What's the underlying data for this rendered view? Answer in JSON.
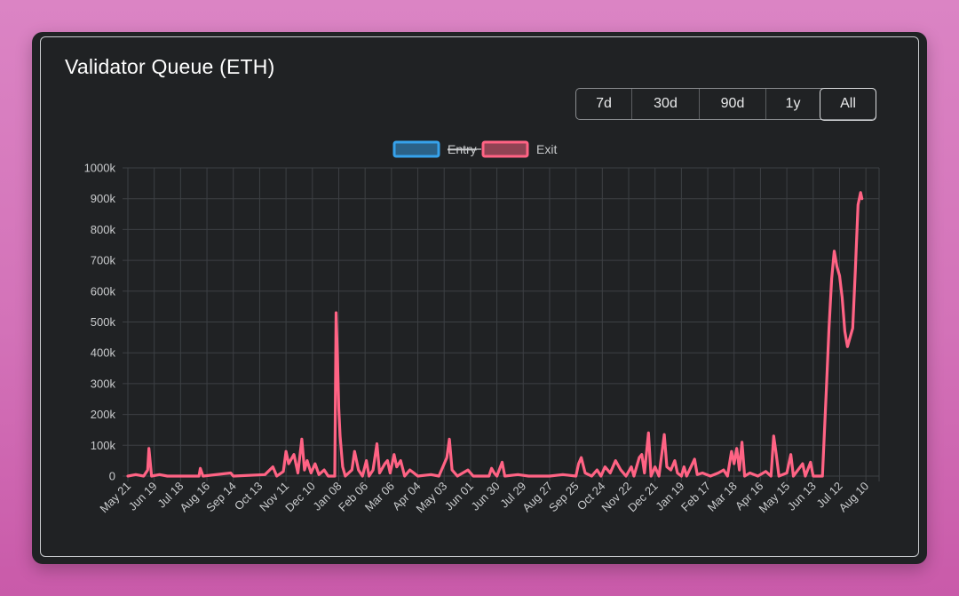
{
  "title": "Validator Queue (ETH)",
  "ranges": [
    "7d",
    "30d",
    "90d",
    "1y",
    "All"
  ],
  "active_range": "All",
  "chart_data": {
    "type": "line",
    "title": "",
    "xlabel": "",
    "ylabel": "",
    "ylim": [
      0,
      1000000
    ],
    "yticks": [
      "0",
      "100k",
      "200k",
      "300k",
      "400k",
      "500k",
      "600k",
      "700k",
      "800k",
      "900k",
      "1000k"
    ],
    "xticks": [
      "May 21",
      "Jun 19",
      "Jul 18",
      "Aug 16",
      "Sep 14",
      "Oct 13",
      "Nov 11",
      "Dec 10",
      "Jan 08",
      "Feb 06",
      "Mar 06",
      "Apr 04",
      "May 03",
      "Jun 01",
      "Jun 30",
      "Jul 29",
      "Aug 27",
      "Sep 25",
      "Oct 24",
      "Nov 22",
      "Dec 21",
      "Jan 19",
      "Feb 17",
      "Mar 18",
      "Apr 16",
      "May 15",
      "Jun 13",
      "Jul 12",
      "Aug 10"
    ],
    "grid": true,
    "legend": "top-center",
    "series": [
      {
        "name": "Entry",
        "color": "#36a2eb",
        "hidden": true,
        "points": []
      },
      {
        "name": "Exit",
        "color": "#ff6384",
        "hidden": false,
        "points": [
          [
            0,
            0
          ],
          [
            0.3,
            5000
          ],
          [
            0.6,
            0
          ],
          [
            0.75,
            20000
          ],
          [
            0.8,
            90000
          ],
          [
            0.9,
            0
          ],
          [
            1.2,
            5000
          ],
          [
            1.5,
            0
          ],
          [
            2.7,
            0
          ],
          [
            2.75,
            25000
          ],
          [
            2.85,
            0
          ],
          [
            3.9,
            10000
          ],
          [
            4.0,
            0
          ],
          [
            5.2,
            5000
          ],
          [
            5.5,
            30000
          ],
          [
            5.65,
            0
          ],
          [
            5.9,
            15000
          ],
          [
            6.0,
            80000
          ],
          [
            6.1,
            40000
          ],
          [
            6.3,
            70000
          ],
          [
            6.45,
            10000
          ],
          [
            6.6,
            120000
          ],
          [
            6.7,
            20000
          ],
          [
            6.8,
            50000
          ],
          [
            6.95,
            10000
          ],
          [
            7.1,
            40000
          ],
          [
            7.25,
            5000
          ],
          [
            7.45,
            20000
          ],
          [
            7.6,
            0
          ],
          [
            7.85,
            0
          ],
          [
            7.9,
            530000
          ],
          [
            7.95,
            390000
          ],
          [
            8.0,
            220000
          ],
          [
            8.05,
            130000
          ],
          [
            8.15,
            30000
          ],
          [
            8.25,
            0
          ],
          [
            8.5,
            20000
          ],
          [
            8.6,
            80000
          ],
          [
            8.75,
            20000
          ],
          [
            8.9,
            0
          ],
          [
            9.05,
            50000
          ],
          [
            9.15,
            0
          ],
          [
            9.3,
            20000
          ],
          [
            9.45,
            105000
          ],
          [
            9.55,
            10000
          ],
          [
            9.75,
            40000
          ],
          [
            9.85,
            50000
          ],
          [
            9.95,
            10000
          ],
          [
            10.1,
            70000
          ],
          [
            10.2,
            30000
          ],
          [
            10.35,
            50000
          ],
          [
            10.5,
            0
          ],
          [
            10.7,
            20000
          ],
          [
            10.85,
            10000
          ],
          [
            11.0,
            0
          ],
          [
            11.5,
            5000
          ],
          [
            11.8,
            0
          ],
          [
            12.1,
            60000
          ],
          [
            12.2,
            120000
          ],
          [
            12.3,
            20000
          ],
          [
            12.5,
            0
          ],
          [
            12.9,
            20000
          ],
          [
            13.1,
            0
          ],
          [
            13.7,
            0
          ],
          [
            13.8,
            25000
          ],
          [
            13.9,
            10000
          ],
          [
            14.0,
            0
          ],
          [
            14.2,
            45000
          ],
          [
            14.3,
            0
          ],
          [
            14.8,
            5000
          ],
          [
            15.2,
            0
          ],
          [
            16.0,
            0
          ],
          [
            16.5,
            5000
          ],
          [
            17.0,
            0
          ],
          [
            17.1,
            40000
          ],
          [
            17.2,
            60000
          ],
          [
            17.35,
            10000
          ],
          [
            17.6,
            0
          ],
          [
            17.8,
            20000
          ],
          [
            17.95,
            0
          ],
          [
            18.1,
            30000
          ],
          [
            18.3,
            10000
          ],
          [
            18.5,
            50000
          ],
          [
            18.7,
            20000
          ],
          [
            18.9,
            0
          ],
          [
            19.1,
            30000
          ],
          [
            19.2,
            0
          ],
          [
            19.4,
            60000
          ],
          [
            19.5,
            70000
          ],
          [
            19.6,
            10000
          ],
          [
            19.75,
            140000
          ],
          [
            19.85,
            0
          ],
          [
            20.0,
            30000
          ],
          [
            20.15,
            0
          ],
          [
            20.35,
            135000
          ],
          [
            20.45,
            30000
          ],
          [
            20.6,
            20000
          ],
          [
            20.75,
            50000
          ],
          [
            20.85,
            10000
          ],
          [
            21.0,
            0
          ],
          [
            21.1,
            30000
          ],
          [
            21.2,
            0
          ],
          [
            21.5,
            55000
          ],
          [
            21.6,
            5000
          ],
          [
            21.8,
            10000
          ],
          [
            22.1,
            0
          ],
          [
            22.4,
            10000
          ],
          [
            22.6,
            20000
          ],
          [
            22.75,
            0
          ],
          [
            22.9,
            80000
          ],
          [
            23.0,
            40000
          ],
          [
            23.1,
            90000
          ],
          [
            23.2,
            20000
          ],
          [
            23.3,
            110000
          ],
          [
            23.4,
            0
          ],
          [
            23.6,
            10000
          ],
          [
            23.9,
            0
          ],
          [
            24.2,
            15000
          ],
          [
            24.4,
            0
          ],
          [
            24.5,
            130000
          ],
          [
            24.6,
            70000
          ],
          [
            24.7,
            0
          ],
          [
            25.0,
            10000
          ],
          [
            25.15,
            70000
          ],
          [
            25.25,
            0
          ],
          [
            25.6,
            40000
          ],
          [
            25.7,
            0
          ],
          [
            25.9,
            45000
          ],
          [
            26.0,
            0
          ],
          [
            26.35,
            0
          ],
          [
            26.5,
            280000
          ],
          [
            26.6,
            480000
          ],
          [
            26.7,
            640000
          ],
          [
            26.8,
            730000
          ],
          [
            26.9,
            680000
          ],
          [
            27.0,
            650000
          ],
          [
            27.1,
            580000
          ],
          [
            27.2,
            470000
          ],
          [
            27.3,
            420000
          ],
          [
            27.4,
            450000
          ],
          [
            27.5,
            480000
          ],
          [
            27.6,
            670000
          ],
          [
            27.7,
            880000
          ],
          [
            27.8,
            920000
          ],
          [
            27.85,
            900000
          ]
        ]
      }
    ]
  }
}
